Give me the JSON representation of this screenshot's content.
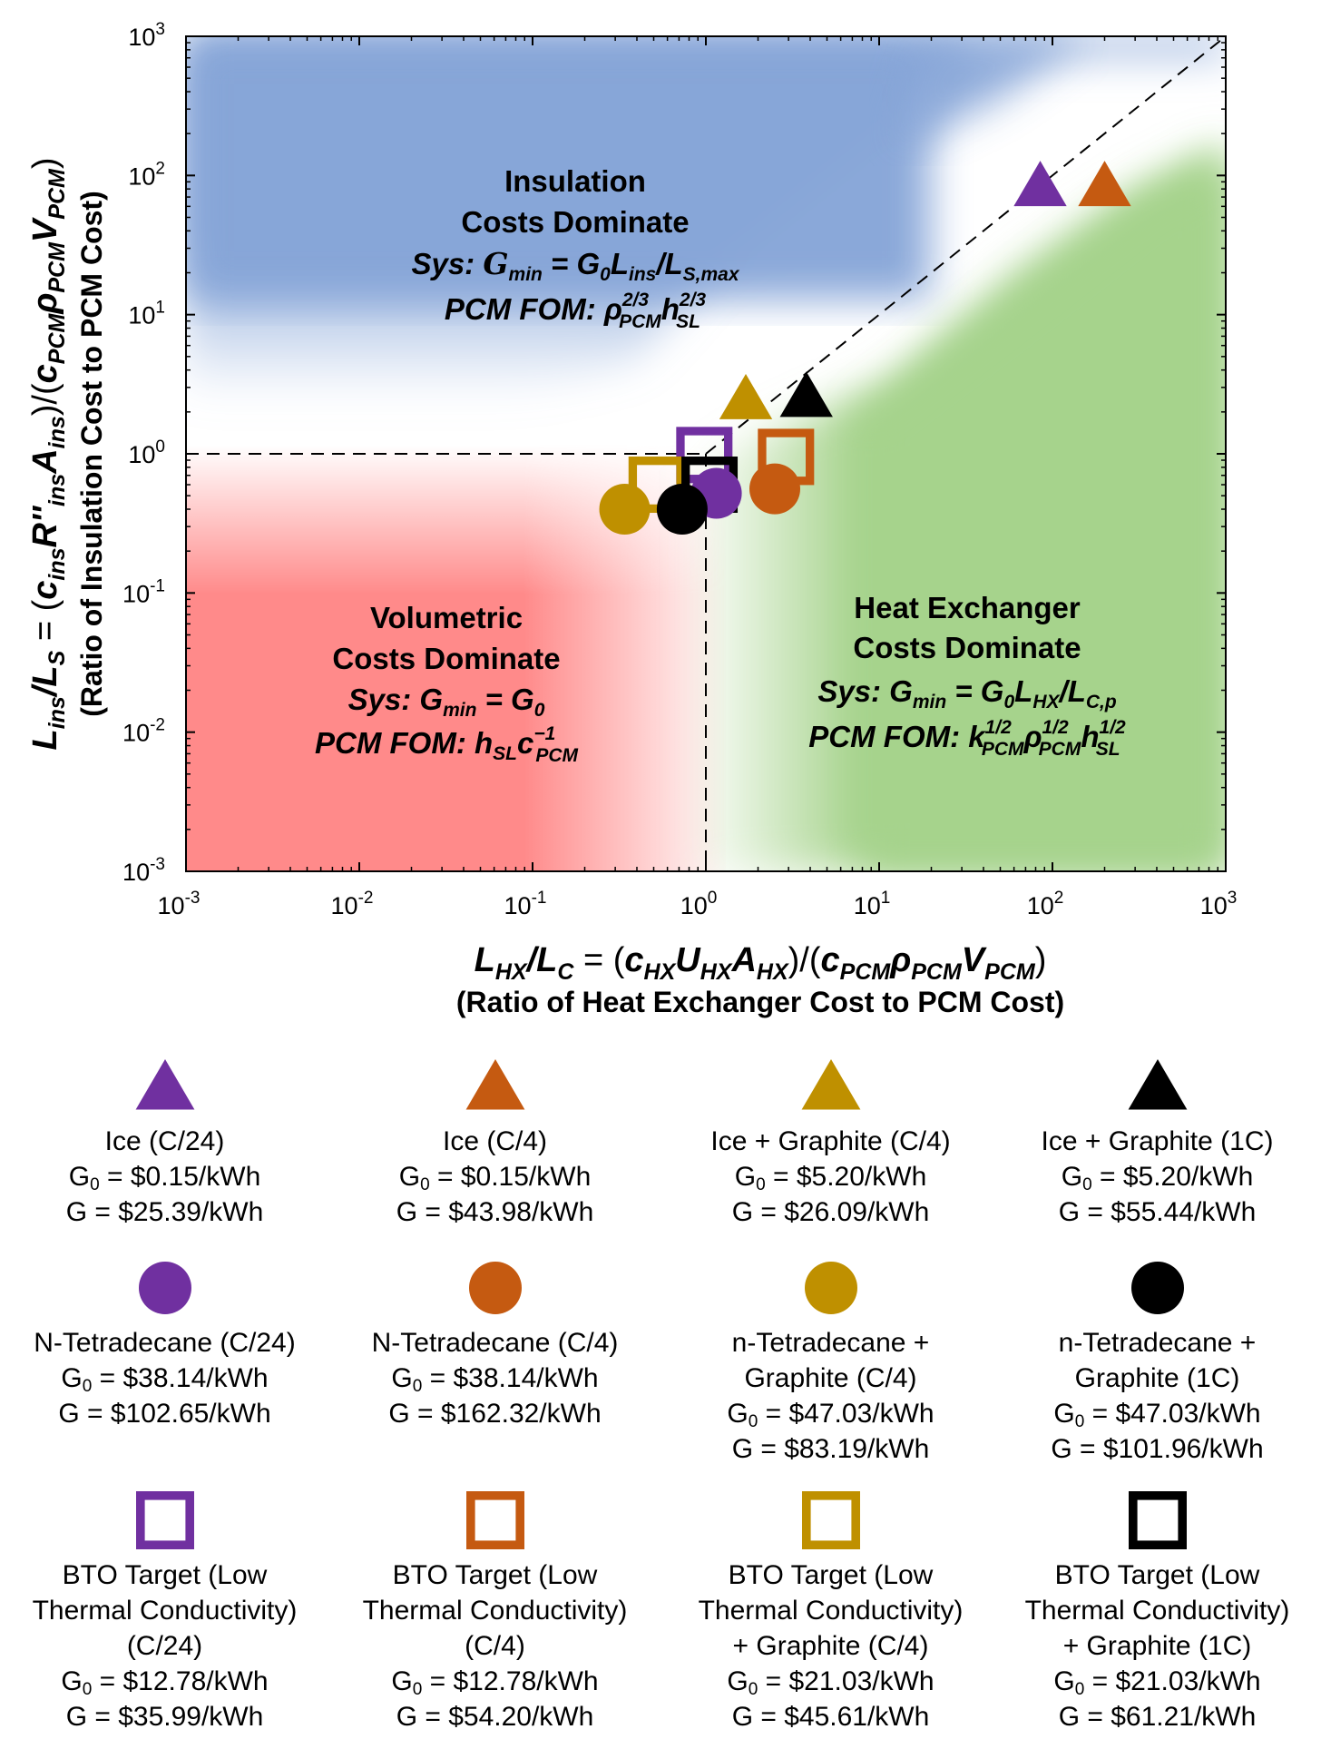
{
  "chart_data": {
    "type": "scatter",
    "xscale": "log",
    "yscale": "log",
    "xlim": [
      0.001,
      1000
    ],
    "ylim": [
      0.001,
      1000
    ],
    "tick_exponents": [
      "-3",
      "-2",
      "-1",
      "0",
      "1",
      "2",
      "3"
    ],
    "tick_base": "10",
    "x_axis": {
      "formula": "L_HX/L_C = (c_HX U_HX A_HX)/(c_PCM ρ_PCM V_PCM)",
      "label": "(Ratio of Heat Exchanger Cost to PCM Cost)"
    },
    "y_axis": {
      "formula": "L_ins/L_S = (c_ins R''_ins A_ins)/(c_PCM ρ_PCM V_PCM)",
      "label": "(Ratio of Insulation Cost to PCM Cost)"
    },
    "regions": [
      {
        "name": "insulation",
        "color": "#87a6d8",
        "title": [
          "Insulation",
          "Costs Dominate"
        ],
        "sys": "Sys: G_min = G_0 L_ins / L_S,max",
        "fom": "PCM FOM: ρ_PCM^(2/3) h_SL^(2/3)"
      },
      {
        "name": "volumetric",
        "color": "#ff8a8a",
        "title": [
          "Volumetric",
          "Costs Dominate"
        ],
        "sys": "Sys: G_min = G_0",
        "fom": "PCM FOM: h_SL c_PCM^(-1)"
      },
      {
        "name": "heat-exchanger",
        "color": "#a6d38c",
        "title": [
          "Heat Exchanger",
          "Costs Dominate"
        ],
        "sys": "Sys: G_min = G_0 L_HX / L_C,p",
        "fom": "PCM FOM: k_PCM^(1/2) ρ_PCM^(1/2) h_SL^(1/2)"
      }
    ],
    "colors": {
      "purple": "#7030a0",
      "orange": "#c55a11",
      "gold": "#bf9000",
      "black": "#000000"
    },
    "points": [
      {
        "series": "Ice (C/24)",
        "marker": "triangle",
        "color": "#7030a0",
        "x": 85,
        "y": 85
      },
      {
        "series": "Ice (C/4)",
        "marker": "triangle",
        "color": "#c55a11",
        "x": 200,
        "y": 85
      },
      {
        "series": "Ice + Graphite (C/4)",
        "marker": "triangle",
        "color": "#bf9000",
        "x": 1.7,
        "y": 2.5
      },
      {
        "series": "Ice + Graphite (1C)",
        "marker": "triangle",
        "color": "#000000",
        "x": 3.8,
        "y": 2.6
      },
      {
        "series": "N-Tetradecane (C/24)",
        "marker": "circle",
        "color": "#7030a0",
        "x": 1.15,
        "y": 0.52
      },
      {
        "series": "N-Tetradecane (C/4)",
        "marker": "circle",
        "color": "#c55a11",
        "x": 2.5,
        "y": 0.56
      },
      {
        "series": "n-Tetradecane + Graphite (C/4)",
        "marker": "circle",
        "color": "#bf9000",
        "x": 0.34,
        "y": 0.4
      },
      {
        "series": "n-Tetradecane + Graphite (1C)",
        "marker": "circle",
        "color": "#000000",
        "x": 0.73,
        "y": 0.4
      },
      {
        "series": "BTO Target (C/24)",
        "marker": "square",
        "color": "#7030a0",
        "x": 0.98,
        "y": 0.98
      },
      {
        "series": "BTO Target (C/4)",
        "marker": "square",
        "color": "#c55a11",
        "x": 2.9,
        "y": 0.95
      },
      {
        "series": "BTO Target + Graphite (C/4)",
        "marker": "square",
        "color": "#bf9000",
        "x": 0.52,
        "y": 0.6
      },
      {
        "series": "BTO Target + Graphite (1C)",
        "marker": "square",
        "color": "#000000",
        "x": 1.05,
        "y": 0.6
      }
    ]
  },
  "legend": {
    "g0_prefix": "G",
    "g0_sub": "0",
    "items": [
      {
        "marker": "triangle",
        "color": "#7030a0",
        "lines": [
          "Ice (C/24)"
        ],
        "g0": " = $0.15/kWh",
        "g": "G = $25.39/kWh"
      },
      {
        "marker": "triangle",
        "color": "#c55a11",
        "lines": [
          "Ice (C/4)"
        ],
        "g0": " = $0.15/kWh",
        "g": "G = $43.98/kWh"
      },
      {
        "marker": "triangle",
        "color": "#bf9000",
        "lines": [
          "Ice + Graphite (C/4)"
        ],
        "g0": " = $5.20/kWh",
        "g": "G = $26.09/kWh"
      },
      {
        "marker": "triangle",
        "color": "#000000",
        "lines": [
          "Ice + Graphite (1C)"
        ],
        "g0": " = $5.20/kWh",
        "g": "G = $55.44/kWh"
      },
      {
        "marker": "circle",
        "color": "#7030a0",
        "lines": [
          "N-Tetradecane (C/24)"
        ],
        "g0": " = $38.14/kWh",
        "g": "G = $102.65/kWh"
      },
      {
        "marker": "circle",
        "color": "#c55a11",
        "lines": [
          "N-Tetradecane (C/4)"
        ],
        "g0": " = $38.14/kWh",
        "g": "G = $162.32/kWh"
      },
      {
        "marker": "circle",
        "color": "#bf9000",
        "lines": [
          "n-Tetradecane +",
          "Graphite (C/4)"
        ],
        "g0": " = $47.03/kWh",
        "g": "G = $83.19/kWh"
      },
      {
        "marker": "circle",
        "color": "#000000",
        "lines": [
          "n-Tetradecane +",
          "Graphite (1C)"
        ],
        "g0": " = $47.03/kWh",
        "g": "G = $101.96/kWh"
      },
      {
        "marker": "square",
        "color": "#7030a0",
        "lines": [
          "BTO Target (Low",
          "Thermal Conductivity)",
          "(C/24)"
        ],
        "g0": " = $12.78/kWh",
        "g": "G = $35.99/kWh"
      },
      {
        "marker": "square",
        "color": "#c55a11",
        "lines": [
          "BTO Target (Low",
          "Thermal Conductivity)",
          "(C/4)"
        ],
        "g0": " = $12.78/kWh",
        "g": "G = $54.20/kWh"
      },
      {
        "marker": "square",
        "color": "#bf9000",
        "lines": [
          "BTO Target (Low",
          "Thermal Conductivity)",
          "+ Graphite (C/4)"
        ],
        "g0": " = $21.03/kWh",
        "g": "G = $45.61/kWh"
      },
      {
        "marker": "square",
        "color": "#000000",
        "lines": [
          "BTO Target (Low",
          "Thermal Conductivity)",
          "+ Graphite (1C)"
        ],
        "g0": " = $21.03/kWh",
        "g": "G = $61.21/kWh"
      }
    ]
  }
}
